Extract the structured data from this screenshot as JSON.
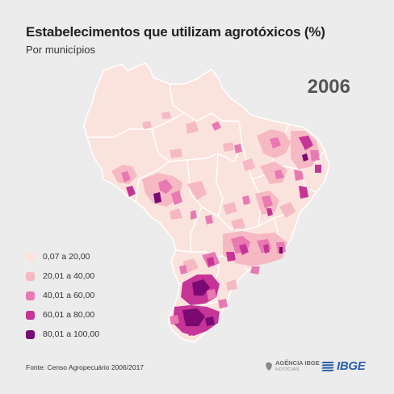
{
  "header": {
    "title": "Estabelecimentos que utilizam agrotóxicos (%)",
    "subtitle": "Por municípios",
    "year": "2006"
  },
  "legend": {
    "items": [
      {
        "label": "0,07 a 20,00",
        "color": "#fbe3dd"
      },
      {
        "label": "20,01 a 40,00",
        "color": "#f6b9c4"
      },
      {
        "label": "40,01 a 60,00",
        "color": "#e879b2"
      },
      {
        "label": "60,01 a 80,00",
        "color": "#c63497"
      },
      {
        "label": "80,01 a 100,00",
        "color": "#7a0a72"
      }
    ]
  },
  "footer": {
    "source": "Fonte: Censo Agropecuário 2006/2017",
    "agencia": "AGÊNCIA IBGE",
    "agencia_sub": "NOTÍCIAS",
    "ibge": "IBGE"
  },
  "colors": {
    "base": "#fbe3dd",
    "border": "#ffffff",
    "background": "#ececec"
  }
}
